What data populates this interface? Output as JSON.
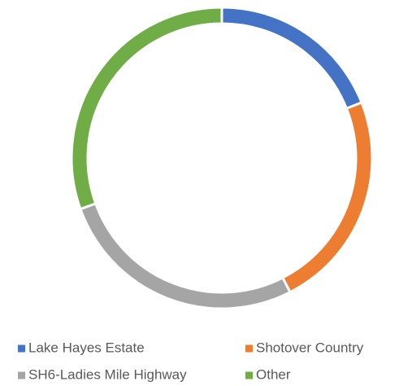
{
  "chart_data": {
    "type": "donut",
    "categories": [
      "Lake Hayes Estate",
      "Shotover Country",
      "SH6-Ladies Mile Highway",
      "Other"
    ],
    "values": [
      19,
      23.5,
      27,
      30.5
    ],
    "colors": [
      "#4472c4",
      "#ed7d31",
      "#a5a5a5",
      "#70ad47"
    ],
    "legend": "bottom"
  }
}
